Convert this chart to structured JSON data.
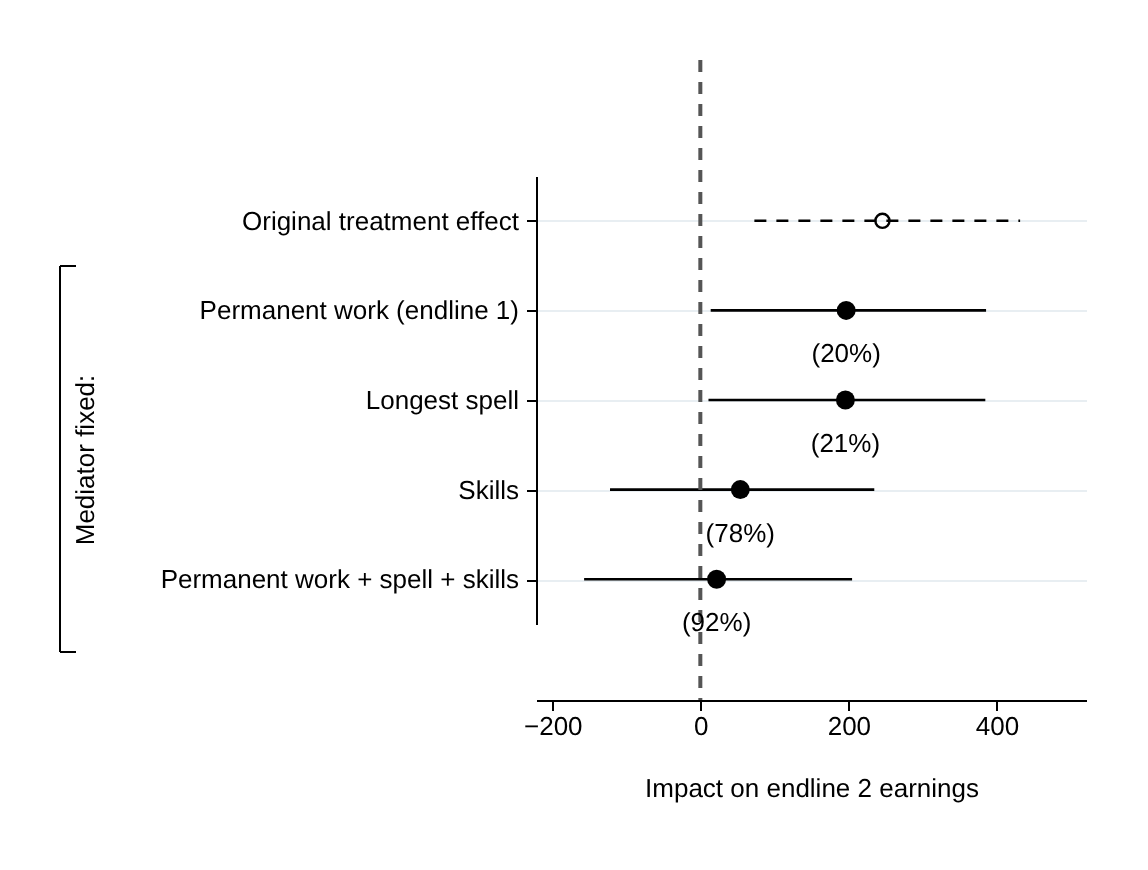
{
  "chart_data": {
    "type": "scatter",
    "orientation": "horizontal",
    "xlabel": "Impact on endline 2 earnings",
    "categories": [
      "Original treatment effect",
      "Permanent work (endline 1)",
      "Longest spell",
      "Skills",
      "Permanent work + spell + skills"
    ],
    "series": [
      {
        "color": "#000000",
        "marker": "circle",
        "line_style": "dashed",
        "values": [
          246,
          null,
          null,
          null,
          null
        ],
        "errors": [
          [
            73,
            432
          ],
          null,
          null,
          null,
          null
        ]
      },
      {
        "color": "#000000",
        "marker": "circle",
        "line_style": "solid",
        "values": [
          null,
          197,
          196,
          54,
          22
        ],
        "errors": [
          null,
          [
            14,
            386
          ],
          [
            11,
            385
          ],
          [
            -122,
            235
          ],
          [
            -157,
            205
          ]
        ]
      }
    ],
    "xlim": [
      -222,
      521
    ],
    "xticks": [
      -200,
      0,
      200,
      400
    ],
    "grid": "y",
    "ref_lines": [
      {
        "axis": "x",
        "value": 0,
        "line_style": "dashed",
        "color": "#555555"
      }
    ],
    "annotations": [
      "Mediator fixed:",
      {
        "text": "(20%)",
        "x": 197,
        "y": "Permanent work (endline 1)"
      },
      {
        "text": "(21%)",
        "x": 196,
        "y": "Longest spell"
      },
      {
        "text": "(78%)",
        "x": 54,
        "y": "Skills"
      },
      {
        "text": "(92%)",
        "x": 22,
        "y": "Permanent work + spell + skills"
      }
    ]
  }
}
